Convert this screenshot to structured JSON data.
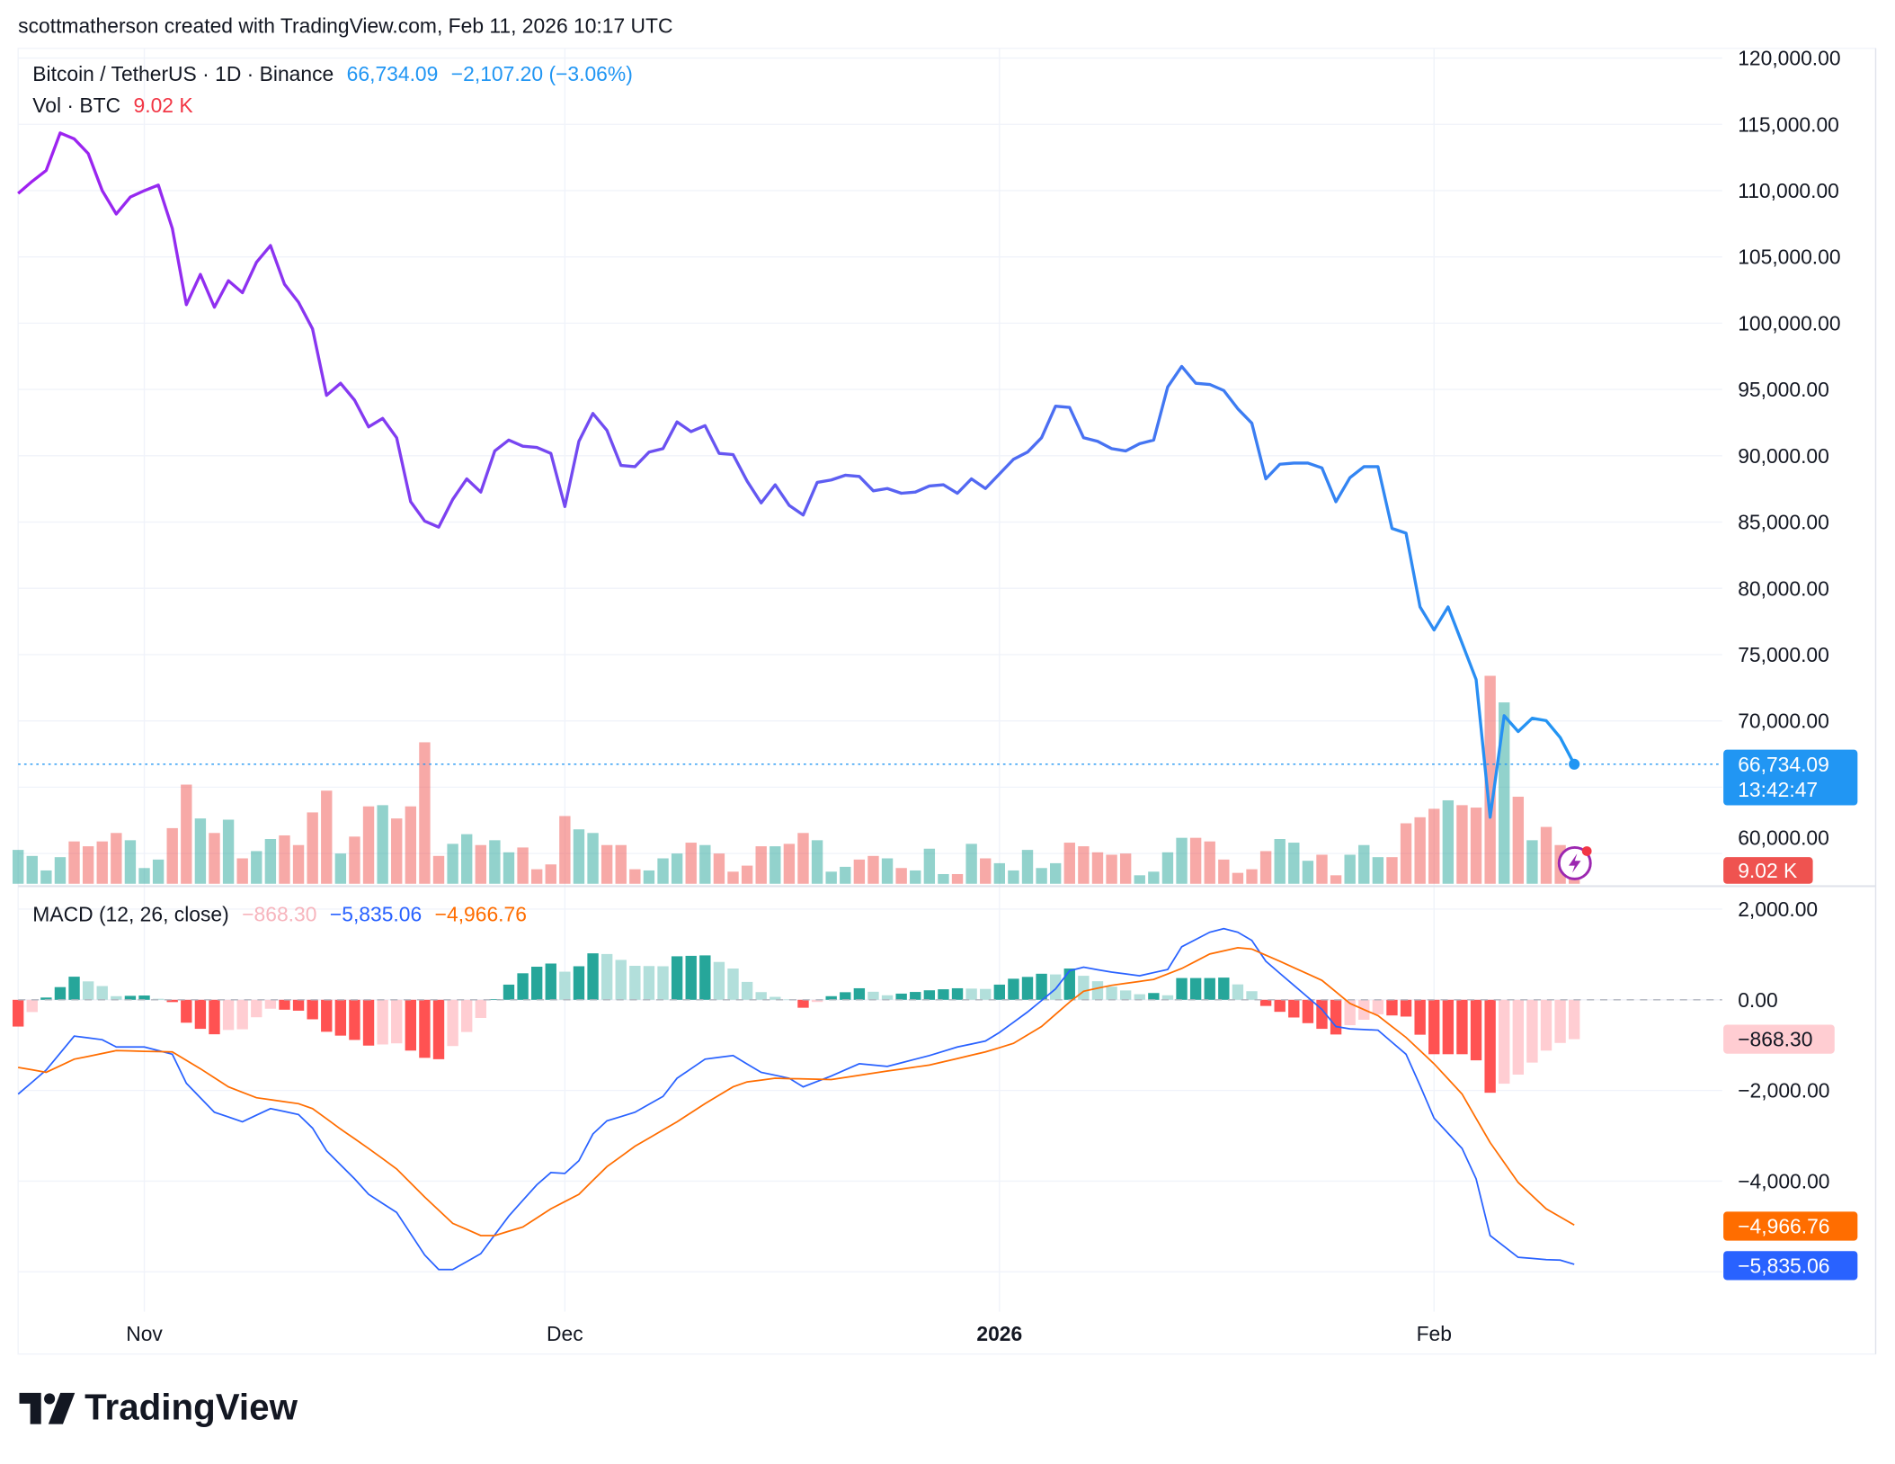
{
  "header": {
    "attribution": "scottmatherson created with TradingView.com, Feb 11, 2026 10:17 UTC"
  },
  "legend": {
    "symbol": "Bitcoin / TetherUS · 1D · Binance",
    "last": "66,734.09",
    "change": "−2,107.20 (−3.06%)",
    "vol_label": "Vol · BTC",
    "vol_value": "9.02 K",
    "macd_label": "MACD (12, 26, close)",
    "macd_hist": "−868.30",
    "macd_line": "−5,835.06",
    "macd_signal": "−4,966.76"
  },
  "price_axis": {
    "ticks": [
      "120,000.00",
      "115,000.00",
      "110,000.00",
      "105,000.00",
      "100,000.00",
      "95,000.00",
      "90,000.00",
      "85,000.00",
      "80,000.00",
      "75,000.00",
      "70,000.00",
      "60,000.00"
    ],
    "last_label": "66,734.09",
    "countdown": "13:42:47",
    "vol_label": "9.02 K"
  },
  "macd_axis": {
    "ticks": [
      "2,000.00",
      "0.00",
      "−2,000.00",
      "−4,000.00"
    ],
    "hist_label": "−868.30",
    "signal_label": "−4,966.76",
    "macd_label": "−5,835.06"
  },
  "time_axis": {
    "ticks": [
      "Nov",
      "Dec",
      "2026",
      "Feb"
    ]
  },
  "logo": {
    "text": "TradingView"
  },
  "colors": {
    "line_start": "#a020f0",
    "line_end": "#2196f3",
    "up": "#26a69a",
    "down": "#ef5350",
    "macd": "#2962ff",
    "signal": "#ff6d00",
    "hist_up_strong": "#26a69a",
    "hist_up_weak": "#b2dfdb",
    "hist_down_strong": "#ff5252",
    "hist_down_weak": "#ffcdd2"
  },
  "icons": {
    "alert": "lightning-bolt-icon"
  },
  "chart_data": {
    "type": "line",
    "x_range": [
      "2025-10-23",
      "2026-02-11"
    ],
    "interval": "1D",
    "price_ylim": [
      60000,
      120000
    ],
    "macd_ylim": [
      -6000,
      2000
    ],
    "grid": true,
    "close": [
      109786,
      110700,
      111520,
      114350,
      113900,
      112800,
      110000,
      108240,
      109510,
      110000,
      110420,
      107140,
      101400,
      103680,
      101210,
      103200,
      102300,
      104590,
      105860,
      102940,
      101580,
      99570,
      94560,
      95470,
      94190,
      92180,
      92820,
      91360,
      86530,
      85070,
      84620,
      86710,
      88260,
      87260,
      90360,
      91180,
      90720,
      90630,
      90180,
      86170,
      91090,
      93190,
      91910,
      89270,
      89180,
      90270,
      90540,
      92550,
      91820,
      92270,
      90180,
      90090,
      88080,
      86440,
      87810,
      86260,
      85530,
      87990,
      88170,
      88530,
      88440,
      87350,
      87530,
      87170,
      87260,
      87720,
      87810,
      87170,
      88260,
      87530,
      88630,
      89730,
      90270,
      91360,
      93740,
      93650,
      91360,
      91090,
      90540,
      90360,
      90910,
      91180,
      95190,
      96740,
      95470,
      95380,
      94920,
      93550,
      92460,
      88260,
      89360,
      89450,
      89450,
      89090,
      86530,
      88350,
      89180,
      89180,
      84520,
      84160,
      78600,
      76860,
      78600,
      75860,
      73120,
      62730,
      70390,
      69200,
      70200,
      70020,
      68740,
      66734.09
    ],
    "volume_k": [
      16.8,
      13.8,
      6.6,
      13.2,
      21,
      18.6,
      21,
      25.2,
      21.6,
      7.8,
      12,
      27.6,
      49.2,
      32.4,
      25.2,
      31.8,
      12.6,
      16.2,
      22.2,
      24,
      19.2,
      35.4,
      46.2,
      15,
      23.4,
      38.4,
      39,
      32.4,
      38.4,
      70.2,
      13.8,
      19.8,
      24.6,
      19.2,
      21.6,
      15.6,
      18,
      7.2,
      9.6,
      33.6,
      27,
      25.2,
      19.2,
      19.2,
      7.2,
      6.6,
      12.6,
      15,
      20.4,
      19.2,
      15,
      6,
      9,
      18.6,
      18.6,
      19.8,
      25.2,
      21.6,
      6,
      8.4,
      12,
      13.8,
      12.6,
      7.8,
      6.6,
      17.4,
      4.8,
      4.8,
      19.8,
      12.6,
      10.2,
      6.6,
      16.8,
      7.8,
      10.2,
      20.4,
      18.6,
      15.6,
      14.4,
      15,
      4.2,
      6,
      15.6,
      22.8,
      22.8,
      21,
      12,
      5.4,
      7.2,
      16.2,
      22.2,
      20.4,
      11.4,
      14.4,
      4.2,
      14.4,
      19.2,
      13.2,
      13.2,
      30,
      33,
      37.2,
      41.4,
      39,
      37.8,
      103.2,
      90,
      43.2,
      21.6,
      28.2,
      19.2,
      9.02
    ],
    "macd": [
      [
        "2025-10-23",
        -2080
      ],
      [
        "2025-10-25",
        -1550
      ],
      [
        "2025-10-27",
        -800
      ],
      [
        "2025-10-29",
        -880
      ],
      [
        "2025-10-30",
        -1040
      ],
      [
        "2025-11-01",
        -1040
      ],
      [
        "2025-11-03",
        -1200
      ],
      [
        "2025-11-04",
        -1840
      ],
      [
        "2025-11-06",
        -2480
      ],
      [
        "2025-11-08",
        -2690
      ],
      [
        "2025-11-10",
        -2400
      ],
      [
        "2025-11-12",
        -2530
      ],
      [
        "2025-11-13",
        -2830
      ],
      [
        "2025-11-14",
        -3330
      ],
      [
        "2025-11-16",
        -3950
      ],
      [
        "2025-11-17",
        -4290
      ],
      [
        "2025-11-19",
        -4690
      ],
      [
        "2025-11-21",
        -5630
      ],
      [
        "2025-11-22",
        -5950
      ],
      [
        "2025-11-23",
        -5950
      ],
      [
        "2025-11-25",
        -5600
      ],
      [
        "2025-11-27",
        -4770
      ],
      [
        "2025-11-29",
        -4080
      ],
      [
        "2025-11-30",
        -3810
      ],
      [
        "2025-12-01",
        -3830
      ],
      [
        "2025-12-02",
        -3550
      ],
      [
        "2025-12-03",
        -2960
      ],
      [
        "2025-12-04",
        -2670
      ],
      [
        "2025-12-06",
        -2480
      ],
      [
        "2025-12-08",
        -2130
      ],
      [
        "2025-12-09",
        -1730
      ],
      [
        "2025-12-11",
        -1310
      ],
      [
        "2025-12-13",
        -1230
      ],
      [
        "2025-12-15",
        -1600
      ],
      [
        "2025-12-17",
        -1730
      ],
      [
        "2025-12-18",
        -1920
      ],
      [
        "2025-12-20",
        -1680
      ],
      [
        "2025-12-22",
        -1410
      ],
      [
        "2025-12-24",
        -1470
      ],
      [
        "2025-12-27",
        -1230
      ],
      [
        "2025-12-29",
        -1040
      ],
      [
        "2025-12-31",
        -910
      ],
      [
        "2026-01-01",
        -720
      ],
      [
        "2026-01-03",
        -270
      ],
      [
        "2026-01-05",
        240
      ],
      [
        "2026-01-06",
        640
      ],
      [
        "2026-01-07",
        720
      ],
      [
        "2026-01-09",
        610
      ],
      [
        "2026-01-11",
        530
      ],
      [
        "2026-01-13",
        670
      ],
      [
        "2026-01-14",
        1170
      ],
      [
        "2026-01-16",
        1490
      ],
      [
        "2026-01-17",
        1570
      ],
      [
        "2026-01-18",
        1490
      ],
      [
        "2026-01-19",
        1310
      ],
      [
        "2026-01-20",
        850
      ],
      [
        "2026-01-22",
        320
      ],
      [
        "2026-01-24",
        -210
      ],
      [
        "2026-01-25",
        -590
      ],
      [
        "2026-01-26",
        -640
      ],
      [
        "2026-01-28",
        -670
      ],
      [
        "2026-01-30",
        -1200
      ],
      [
        "2026-01-31",
        -1890
      ],
      [
        "2026-02-01",
        -2610
      ],
      [
        "2026-02-03",
        -3280
      ],
      [
        "2026-02-04",
        -3950
      ],
      [
        "2026-02-05",
        -5200
      ],
      [
        "2026-02-07",
        -5680
      ],
      [
        "2026-02-09",
        -5730
      ],
      [
        "2026-02-10",
        -5740
      ],
      [
        "2026-02-11",
        -5835.06
      ]
    ],
    "signal": [
      [
        "2025-10-23",
        -1490
      ],
      [
        "2025-10-25",
        -1600
      ],
      [
        "2025-10-27",
        -1310
      ],
      [
        "2025-10-30",
        -1120
      ],
      [
        "2025-11-03",
        -1150
      ],
      [
        "2025-11-05",
        -1520
      ],
      [
        "2025-11-07",
        -1920
      ],
      [
        "2025-11-09",
        -2160
      ],
      [
        "2025-11-12",
        -2290
      ],
      [
        "2025-11-13",
        -2400
      ],
      [
        "2025-11-15",
        -2850
      ],
      [
        "2025-11-17",
        -3280
      ],
      [
        "2025-11-19",
        -3730
      ],
      [
        "2025-11-21",
        -4350
      ],
      [
        "2025-11-23",
        -4930
      ],
      [
        "2025-11-25",
        -5200
      ],
      [
        "2025-11-26",
        -5200
      ],
      [
        "2025-11-28",
        -5010
      ],
      [
        "2025-11-30",
        -4610
      ],
      [
        "2025-12-02",
        -4290
      ],
      [
        "2025-12-04",
        -3680
      ],
      [
        "2025-12-06",
        -3230
      ],
      [
        "2025-12-09",
        -2690
      ],
      [
        "2025-12-11",
        -2290
      ],
      [
        "2025-12-13",
        -1920
      ],
      [
        "2025-12-14",
        -1810
      ],
      [
        "2025-12-16",
        -1730
      ],
      [
        "2025-12-20",
        -1760
      ],
      [
        "2025-12-24",
        -1570
      ],
      [
        "2025-12-27",
        -1440
      ],
      [
        "2025-12-31",
        -1150
      ],
      [
        "2026-01-02",
        -960
      ],
      [
        "2026-01-04",
        -590
      ],
      [
        "2026-01-06",
        -50
      ],
      [
        "2026-01-07",
        190
      ],
      [
        "2026-01-09",
        320
      ],
      [
        "2026-01-12",
        450
      ],
      [
        "2026-01-14",
        690
      ],
      [
        "2026-01-16",
        1010
      ],
      [
        "2026-01-18",
        1150
      ],
      [
        "2026-01-19",
        1120
      ],
      [
        "2026-01-21",
        850
      ],
      [
        "2026-01-24",
        430
      ],
      [
        "2026-01-26",
        -80
      ],
      [
        "2026-01-28",
        -350
      ],
      [
        "2026-01-30",
        -830
      ],
      [
        "2026-02-01",
        -1410
      ],
      [
        "2026-02-03",
        -2080
      ],
      [
        "2026-02-05",
        -3150
      ],
      [
        "2026-02-07",
        -4030
      ],
      [
        "2026-02-09",
        -4610
      ],
      [
        "2026-02-11",
        -4966.76
      ]
    ]
  }
}
